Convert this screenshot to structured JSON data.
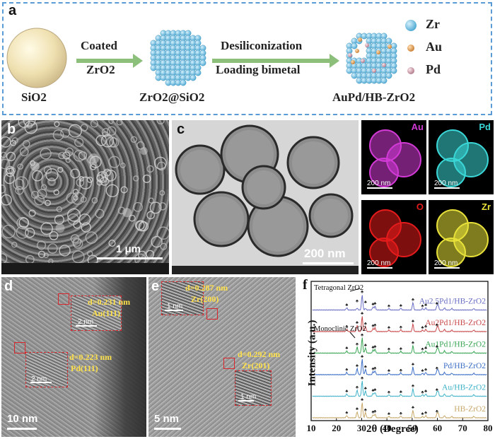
{
  "panel_a": {
    "label": "a",
    "stage1": "SiO2",
    "arrow1_top": "Coated",
    "arrow1_bottom": "ZrO2",
    "stage2": "ZrO2@SiO2",
    "arrow2_top": "Desiliconization",
    "arrow2_bottom": "Loading bimetal",
    "stage3": "AuPd/HB-ZrO2",
    "legend": [
      {
        "name": "Zr",
        "color": "#73c3e3"
      },
      {
        "name": "Au",
        "color": "#e4a25a"
      },
      {
        "name": "Pd",
        "color": "#d9a6b3"
      }
    ]
  },
  "panel_b": {
    "label": "b",
    "scale": "1 μm"
  },
  "panel_c": {
    "label": "c",
    "scale": "200 nm",
    "maps": [
      {
        "element": "Au",
        "scale": "200 nm",
        "color": "#d23ad6"
      },
      {
        "element": "Pd",
        "scale": "200 nm",
        "color": "#3bd6d6"
      },
      {
        "element": "O",
        "scale": "200 nm",
        "color": "#e41b1b"
      },
      {
        "element": "Zr",
        "scale": "200 nm",
        "color": "#e8e13a"
      }
    ]
  },
  "panel_d": {
    "label": "d",
    "scale": "10 nm",
    "fringe1": {
      "d": "d=0.231 nm",
      "plane": "Au(111)",
      "inset_scale": "2 nm"
    },
    "fringe2": {
      "d": "d=0.223 nm",
      "plane": "Pd(111)",
      "inset_scale": "2 nm"
    }
  },
  "panel_e": {
    "label": "e",
    "scale": "5 nm",
    "fringe1": {
      "d": "d=0.287 nm",
      "plane": "Zr(200)",
      "inset_scale": "1 nm"
    },
    "fringe2": {
      "d": "d=0.292 nm",
      "plane": "Zr(201)",
      "inset_scale": "1 nm"
    }
  },
  "chart_data": {
    "type": "line",
    "panel_label": "f",
    "xlabel": "2θ (Degree)",
    "ylabel": "Intensity (a.u.)",
    "xlim": [
      10,
      80
    ],
    "x_ticks": [
      10,
      20,
      30,
      40,
      50,
      60,
      70,
      80
    ],
    "annotations": [
      "Tetragonal ZrO2",
      "Monoclinic ZrO2"
    ],
    "series": [
      {
        "name": "Au2.5Pd1/HB-ZrO2",
        "color": "#6a6fc4",
        "offset": 5
      },
      {
        "name": "Au2Pd1/HB-ZrO2",
        "color": "#c9484a",
        "offset": 4
      },
      {
        "name": "Au1Pd1/HB-ZrO2",
        "color": "#3aa655",
        "offset": 3
      },
      {
        "name": "Pd/HB-ZrO2",
        "color": "#3c6fc6",
        "offset": 2
      },
      {
        "name": "Au/HB-ZrO2",
        "color": "#41b3c9",
        "offset": 1
      },
      {
        "name": "HB-ZrO2",
        "color": "#c8a86a",
        "offset": 0
      }
    ],
    "peaks_deg": [
      24.1,
      28.2,
      30.2,
      31.5,
      34.5,
      35.3,
      40.8,
      45.5,
      50.3,
      54.1,
      55.4,
      59.8,
      60.3,
      62.8,
      65.7,
      74.4
    ]
  }
}
